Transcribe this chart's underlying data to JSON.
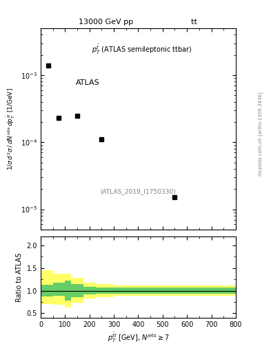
{
  "title_left": "13000 GeV pp",
  "title_right": "tt",
  "annotation": "p_T^{tbar} (ATLAS semileptonic ttbar)",
  "watermark": "(ATLAS_2019_I1750330)",
  "side_label": "mcplots.cern.ch [arXiv:1306.3436]",
  "main_xlabel": "p^{tbar{t}}_T [GeV], N^{jets} #geq 7",
  "main_ylabel": "1 / #sigma d^{2}#sigma / dN^{obs} d p^{tbar{t}}_T [1/GeV]",
  "ratio_ylabel": "Ratio to ATLAS",
  "data_x": [
    30,
    75,
    150,
    250,
    550
  ],
  "data_y": [
    0.0014,
    0.00023,
    0.00025,
    0.00011,
    1.5e-05
  ],
  "data_label": "ATLAS",
  "ylim_log": [
    5e-06,
    0.005
  ],
  "xlim": [
    0,
    800
  ],
  "ratio_ylim": [
    0.4,
    2.2
  ],
  "ratio_yticks": [
    0.5,
    1.0,
    1.5,
    2.0
  ],
  "ratio_band_bins_x": [
    0,
    50,
    100,
    125,
    175,
    225,
    300,
    800
  ],
  "ratio_green_lo": [
    0.87,
    0.88,
    0.78,
    0.85,
    0.92,
    0.93,
    0.93
  ],
  "ratio_green_hi": [
    1.13,
    1.18,
    1.22,
    1.15,
    1.08,
    1.07,
    1.07
  ],
  "ratio_yellow_lo": [
    0.7,
    0.68,
    0.63,
    0.73,
    0.82,
    0.85,
    0.88
  ],
  "ratio_yellow_hi": [
    1.45,
    1.38,
    1.38,
    1.28,
    1.18,
    1.15,
    1.12
  ],
  "color_green": "#66cc66",
  "color_yellow": "#ffff66",
  "marker_color": "black",
  "marker_size": 5
}
